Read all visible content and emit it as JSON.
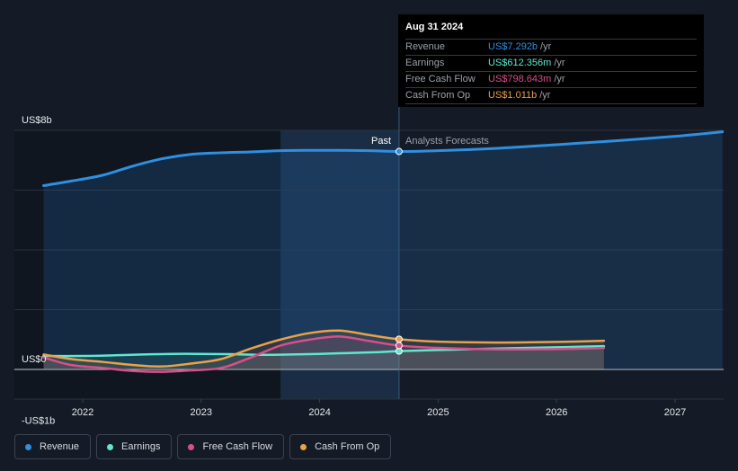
{
  "tooltip": {
    "date": "Aug 31 2024",
    "rows": [
      {
        "label": "Revenue",
        "value": "US$7.292b",
        "unit": "/yr",
        "color": "#2f8fe0"
      },
      {
        "label": "Earnings",
        "value": "US$612.356m",
        "unit": "/yr",
        "color": "#5ee8d0"
      },
      {
        "label": "Free Cash Flow",
        "value": "US$798.643m",
        "unit": "/yr",
        "color": "#d94f8a"
      },
      {
        "label": "Cash From Op",
        "value": "US$1.011b",
        "unit": "/yr",
        "color": "#e8a24a"
      }
    ]
  },
  "labels": {
    "past": "Past",
    "forecast": "Analysts Forecasts"
  },
  "legend": [
    {
      "label": "Revenue",
      "color": "#2f8fe0"
    },
    {
      "label": "Earnings",
      "color": "#5ee8d0"
    },
    {
      "label": "Free Cash Flow",
      "color": "#d94f8a"
    },
    {
      "label": "Cash From Op",
      "color": "#e8a24a"
    }
  ],
  "chart_data": {
    "type": "line",
    "title": "",
    "ylabel": "",
    "xlabel": "",
    "ylim": [
      -1,
      8
    ],
    "ytick_labels": [
      {
        "value": 8,
        "label": "US$8b"
      },
      {
        "value": 0,
        "label": "US$0"
      },
      {
        "value": -1,
        "label": "-US$1b"
      }
    ],
    "xlim": [
      2021.5,
      2027.4
    ],
    "xticks": [
      2022,
      2023,
      2024,
      2025,
      2026,
      2027
    ],
    "past_end": 2024.67,
    "highlight_start": 2023.67,
    "series": [
      {
        "name": "Revenue",
        "color": "#2f8fe0",
        "x": [
          2021.67,
          2021.9,
          2022.17,
          2022.42,
          2022.67,
          2022.92,
          2023.17,
          2023.42,
          2023.67,
          2023.92,
          2024.17,
          2024.42,
          2024.67,
          2025.0,
          2025.5,
          2026.0,
          2026.5,
          2027.0,
          2027.4
        ],
        "values": [
          6.15,
          6.3,
          6.5,
          6.8,
          7.05,
          7.2,
          7.25,
          7.28,
          7.32,
          7.33,
          7.33,
          7.32,
          7.292,
          7.32,
          7.4,
          7.52,
          7.65,
          7.8,
          7.95
        ]
      },
      {
        "name": "Earnings",
        "color": "#5ee8d0",
        "x": [
          2021.67,
          2022.0,
          2022.25,
          2022.5,
          2022.75,
          2023.0,
          2023.25,
          2023.5,
          2023.75,
          2024.0,
          2024.25,
          2024.5,
          2024.67,
          2025.0,
          2025.5,
          2026.0,
          2026.4
        ],
        "values": [
          0.45,
          0.45,
          0.47,
          0.5,
          0.52,
          0.52,
          0.51,
          0.49,
          0.5,
          0.52,
          0.55,
          0.58,
          0.612,
          0.65,
          0.7,
          0.74,
          0.78
        ]
      },
      {
        "name": "Free Cash Flow",
        "color": "#d94f8a",
        "x": [
          2021.67,
          2021.9,
          2022.17,
          2022.42,
          2022.67,
          2022.92,
          2023.17,
          2023.42,
          2023.67,
          2023.92,
          2024.17,
          2024.42,
          2024.67,
          2025.0,
          2025.5,
          2026.0,
          2026.4
        ],
        "values": [
          0.4,
          0.15,
          0.05,
          -0.05,
          -0.08,
          -0.03,
          0.05,
          0.4,
          0.8,
          1.0,
          1.1,
          0.95,
          0.799,
          0.72,
          0.67,
          0.68,
          0.72
        ]
      },
      {
        "name": "Cash From Op",
        "color": "#e8a24a",
        "x": [
          2021.67,
          2021.9,
          2022.17,
          2022.42,
          2022.67,
          2022.92,
          2023.17,
          2023.42,
          2023.67,
          2023.92,
          2024.17,
          2024.42,
          2024.67,
          2025.0,
          2025.5,
          2026.0,
          2026.4
        ],
        "values": [
          0.5,
          0.35,
          0.25,
          0.15,
          0.1,
          0.2,
          0.35,
          0.7,
          1.0,
          1.22,
          1.3,
          1.15,
          1.011,
          0.93,
          0.9,
          0.92,
          0.96
        ]
      }
    ]
  }
}
